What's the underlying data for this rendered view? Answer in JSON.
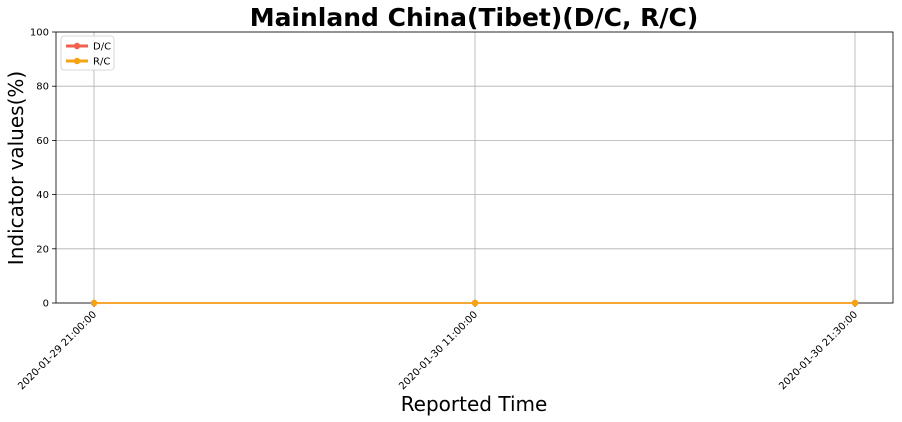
{
  "chart_data": {
    "type": "line",
    "title": "Mainland China(Tibet)(D/C, R/C)",
    "xlabel": "Reported Time",
    "ylabel": "Indicator values(%)",
    "categories": [
      "2020-01-29 21:00:00",
      "2020-01-30 11:00:00",
      "2020-01-30 21:30:00"
    ],
    "ylim": [
      0,
      100
    ],
    "yticks": [
      "0",
      "20",
      "40",
      "60",
      "80",
      "100"
    ],
    "grid": true,
    "legend_position": "top-left",
    "series": [
      {
        "name": "D/C",
        "values": [
          0,
          0,
          0
        ],
        "color": "#f0604d"
      },
      {
        "name": "R/C",
        "values": [
          0,
          0,
          0
        ],
        "color": "#f5a310"
      }
    ]
  }
}
